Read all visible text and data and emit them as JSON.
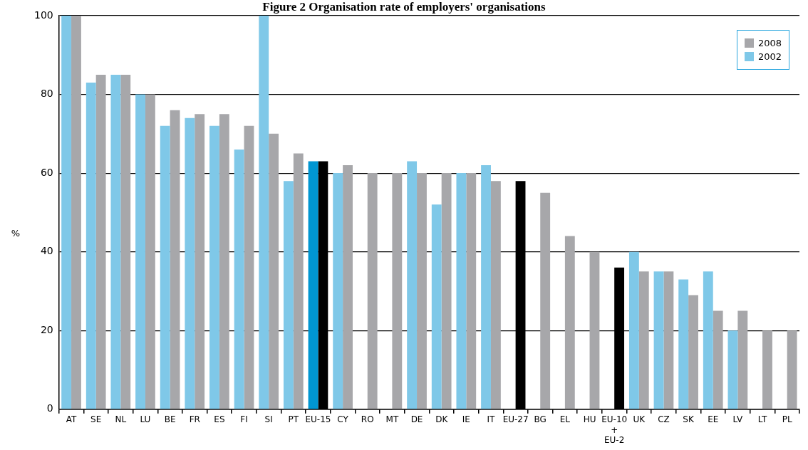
{
  "chart_data": {
    "type": "bar",
    "title": "Figure 2 Organisation rate of employers' organisations",
    "ylabel": "%",
    "categories": [
      "AT",
      "SE",
      "NL",
      "LU",
      "BE",
      "FR",
      "ES",
      "FI",
      "SI",
      "PT",
      "EU-15",
      "CY",
      "RO",
      "MT",
      "DE",
      "DK",
      "IE",
      "IT",
      "EU-27",
      "BG",
      "EL",
      "HU",
      "EU-10 + EU-2",
      "UK",
      "CZ",
      "SK",
      "EE",
      "LV",
      "LT",
      "PL"
    ],
    "series": [
      {
        "name": "2002",
        "color": "#7fc8e8",
        "colors": [
          "#7fc8e8",
          "#7fc8e8",
          "#7fc8e8",
          "#7fc8e8",
          "#7fc8e8",
          "#7fc8e8",
          "#7fc8e8",
          "#7fc8e8",
          "#7fc8e8",
          "#7fc8e8",
          "#0096d2",
          "#7fc8e8",
          "#7fc8e8",
          "#7fc8e8",
          "#7fc8e8",
          "#7fc8e8",
          "#7fc8e8",
          "#7fc8e8",
          "#7fc8e8",
          "#7fc8e8",
          "#7fc8e8",
          "#7fc8e8",
          "#7fc8e8",
          "#7fc8e8",
          "#7fc8e8",
          "#7fc8e8",
          "#7fc8e8",
          "#7fc8e8",
          "#7fc8e8",
          "#7fc8e8"
        ],
        "values": [
          100,
          83,
          85,
          80,
          72,
          74,
          72,
          66,
          100,
          58,
          63,
          60,
          null,
          null,
          63,
          52,
          60,
          62,
          null,
          0,
          null,
          null,
          null,
          40,
          35,
          33,
          35,
          20,
          null,
          null
        ]
      },
      {
        "name": "2008",
        "color": "#a7a7aa",
        "colors": [
          "#a7a7aa",
          "#a7a7aa",
          "#a7a7aa",
          "#a7a7aa",
          "#a7a7aa",
          "#a7a7aa",
          "#a7a7aa",
          "#a7a7aa",
          "#a7a7aa",
          "#a7a7aa",
          "#000000",
          "#a7a7aa",
          "#a7a7aa",
          "#a7a7aa",
          "#a7a7aa",
          "#a7a7aa",
          "#a7a7aa",
          "#a7a7aa",
          "#000000",
          "#a7a7aa",
          "#a7a7aa",
          "#a7a7aa",
          "#000000",
          "#a7a7aa",
          "#a7a7aa",
          "#a7a7aa",
          "#a7a7aa",
          "#a7a7aa",
          "#a7a7aa",
          "#a7a7aa"
        ],
        "values": [
          100,
          85,
          85,
          80,
          76,
          75,
          75,
          72,
          70,
          65,
          63,
          62,
          60,
          60,
          60,
          60,
          60,
          58,
          58,
          55,
          44,
          40,
          36,
          35,
          35,
          29,
          25,
          25,
          20,
          20
        ]
      }
    ],
    "ylim": [
      0,
      100
    ],
    "yticks": [
      0,
      20,
      40,
      60,
      80,
      100
    ],
    "grid": "y",
    "legend": "top right"
  }
}
